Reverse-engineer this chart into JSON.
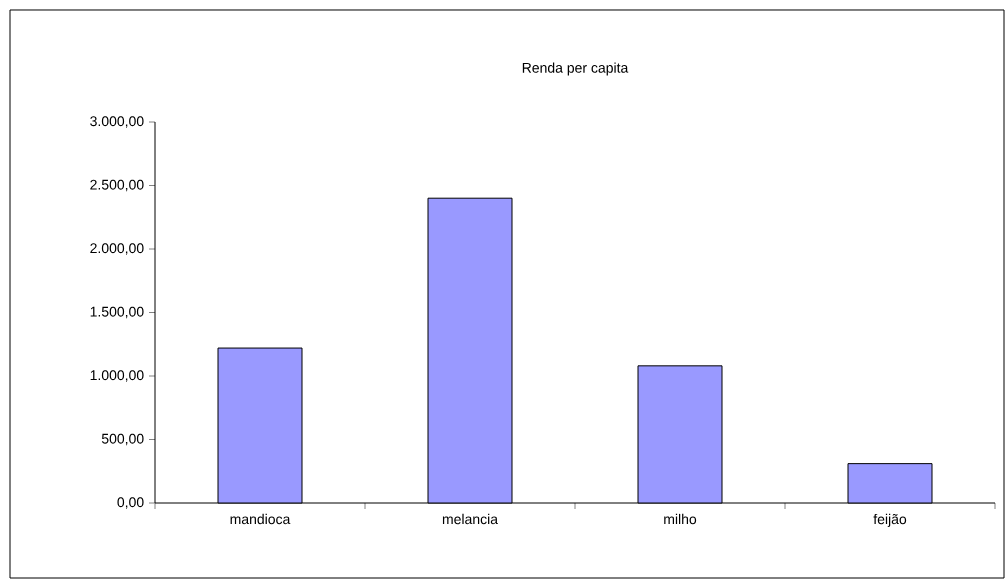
{
  "chart_data": {
    "type": "bar",
    "title": "Renda per capita",
    "categories": [
      "mandioca",
      "melancia",
      "milho",
      "feijão"
    ],
    "values": [
      1220,
      2400,
      1080,
      310
    ],
    "color": "#9999ff",
    "ylim": [
      0,
      3000
    ],
    "yticks": [
      {
        "value": 0,
        "label": "0,00"
      },
      {
        "value": 500,
        "label": "500,00"
      },
      {
        "value": 1000,
        "label": "1.000,00"
      },
      {
        "value": 1500,
        "label": "1.500,00"
      },
      {
        "value": 2000,
        "label": "2.000,00"
      },
      {
        "value": 2500,
        "label": "2.500,00"
      },
      {
        "value": 3000,
        "label": "3.000,00"
      }
    ],
    "grid": false
  }
}
